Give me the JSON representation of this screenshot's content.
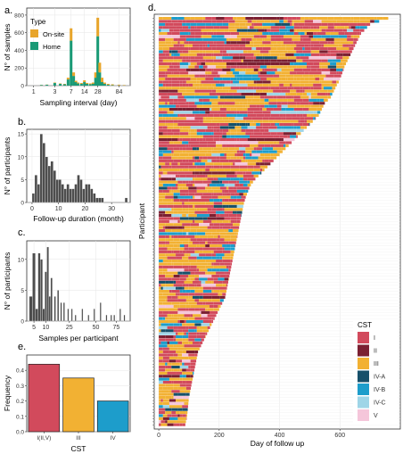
{
  "colors": {
    "onsite": "#E8A52B",
    "home": "#1A9A76",
    "gray_bar": "#4D4D4D",
    "panel_border": "#333333",
    "grid": "#E6E6E6",
    "cst": {
      "I": "#D24A5C",
      "II": "#7B2032",
      "III": "#F2B133",
      "IV-A": "#17506A",
      "IV-B": "#1D9DCB",
      "IV-C": "#9FD5E7",
      "V": "#F5C6DA"
    }
  },
  "chart_data": [
    {
      "panel": "a.",
      "type": "bar",
      "stacked": true,
      "xlabel": "Sampling interval (day)",
      "ylabel": "N° of samples",
      "x_scale": "log",
      "xticks": [
        "1",
        "3",
        "7",
        "14",
        "28",
        "84"
      ],
      "xtick_values": [
        1,
        3,
        7,
        14,
        28,
        84
      ],
      "xlim": [
        0.7,
        150
      ],
      "ylim": [
        0,
        880
      ],
      "yticks": [
        0,
        200,
        400,
        600,
        800
      ],
      "legend_title": "Type",
      "legend_position": "top-left",
      "series": [
        {
          "name": "On-site",
          "color_key": "onsite"
        },
        {
          "name": "Home",
          "color_key": "home"
        }
      ],
      "bins": [
        {
          "x": 1.5,
          "home": 8,
          "onsite": 2
        },
        {
          "x": 2,
          "home": 10,
          "onsite": 2
        },
        {
          "x": 3,
          "home": 30,
          "onsite": 5
        },
        {
          "x": 4,
          "home": 20,
          "onsite": 5
        },
        {
          "x": 5,
          "home": 15,
          "onsite": 5
        },
        {
          "x": 6,
          "home": 70,
          "onsite": 20
        },
        {
          "x": 7,
          "home": 510,
          "onsite": 140
        },
        {
          "x": 8,
          "home": 110,
          "onsite": 40
        },
        {
          "x": 9,
          "home": 40,
          "onsite": 15
        },
        {
          "x": 10,
          "home": 25,
          "onsite": 10
        },
        {
          "x": 12,
          "home": 20,
          "onsite": 10
        },
        {
          "x": 14,
          "home": 40,
          "onsite": 20
        },
        {
          "x": 16,
          "home": 20,
          "onsite": 10
        },
        {
          "x": 19,
          "home": 15,
          "onsite": 10
        },
        {
          "x": 22,
          "home": 20,
          "onsite": 15
        },
        {
          "x": 25,
          "home": 90,
          "onsite": 60
        },
        {
          "x": 28,
          "home": 560,
          "onsite": 210
        },
        {
          "x": 31,
          "home": 150,
          "onsite": 110
        },
        {
          "x": 35,
          "home": 40,
          "onsite": 50
        },
        {
          "x": 40,
          "home": 20,
          "onsite": 15
        },
        {
          "x": 48,
          "home": 10,
          "onsite": 10
        },
        {
          "x": 60,
          "home": 5,
          "onsite": 10
        },
        {
          "x": 84,
          "home": 3,
          "onsite": 8
        },
        {
          "x": 110,
          "home": 2,
          "onsite": 5
        }
      ]
    },
    {
      "panel": "b.",
      "type": "bar",
      "xlabel": "Follow-up duration (month)",
      "ylabel": "N° of participants",
      "xlim": [
        -2,
        37
      ],
      "ylim": [
        0,
        16
      ],
      "xticks": [
        "0",
        "10",
        "20",
        "30"
      ],
      "xtick_values": [
        0,
        10,
        20,
        30
      ],
      "yticks": [
        0,
        5,
        10,
        15
      ],
      "bin_width": 1,
      "bins": [
        {
          "x": 0,
          "count": 2
        },
        {
          "x": 1,
          "count": 6
        },
        {
          "x": 2,
          "count": 4
        },
        {
          "x": 3,
          "count": 15
        },
        {
          "x": 4,
          "count": 13
        },
        {
          "x": 5,
          "count": 10
        },
        {
          "x": 6,
          "count": 8
        },
        {
          "x": 7,
          "count": 9
        },
        {
          "x": 8,
          "count": 7
        },
        {
          "x": 9,
          "count": 5
        },
        {
          "x": 10,
          "count": 5
        },
        {
          "x": 11,
          "count": 4
        },
        {
          "x": 12,
          "count": 3
        },
        {
          "x": 13,
          "count": 4
        },
        {
          "x": 14,
          "count": 3
        },
        {
          "x": 15,
          "count": 3
        },
        {
          "x": 16,
          "count": 4
        },
        {
          "x": 17,
          "count": 6
        },
        {
          "x": 18,
          "count": 5
        },
        {
          "x": 19,
          "count": 3
        },
        {
          "x": 20,
          "count": 4
        },
        {
          "x": 21,
          "count": 4
        },
        {
          "x": 22,
          "count": 3
        },
        {
          "x": 23,
          "count": 2
        },
        {
          "x": 24,
          "count": 1
        },
        {
          "x": 25,
          "count": 1
        },
        {
          "x": 26,
          "count": 1
        },
        {
          "x": 35,
          "count": 1
        }
      ]
    },
    {
      "panel": "c.",
      "type": "bar",
      "xlabel": "Samples per participant",
      "ylabel": "N° of participants",
      "x_scale": "sqrt",
      "xlim": [
        2.8,
        95
      ],
      "ylim": [
        0,
        13
      ],
      "xticks": [
        "5",
        "10",
        "25",
        "50",
        "75"
      ],
      "xtick_values": [
        5,
        10,
        25,
        50,
        75
      ],
      "yticks": [
        0,
        5,
        10
      ],
      "bins": [
        {
          "x": 4,
          "count": 4
        },
        {
          "x": 5,
          "count": 11
        },
        {
          "x": 6,
          "count": 2
        },
        {
          "x": 7,
          "count": 11
        },
        {
          "x": 8,
          "count": 10
        },
        {
          "x": 9,
          "count": 2
        },
        {
          "x": 10,
          "count": 8
        },
        {
          "x": 11,
          "count": 12
        },
        {
          "x": 12,
          "count": 4
        },
        {
          "x": 13,
          "count": 7
        },
        {
          "x": 15,
          "count": 4
        },
        {
          "x": 17,
          "count": 5
        },
        {
          "x": 19,
          "count": 3
        },
        {
          "x": 21,
          "count": 3
        },
        {
          "x": 24,
          "count": 2
        },
        {
          "x": 27,
          "count": 2
        },
        {
          "x": 30,
          "count": 1
        },
        {
          "x": 36,
          "count": 2
        },
        {
          "x": 42,
          "count": 1
        },
        {
          "x": 48,
          "count": 2
        },
        {
          "x": 55,
          "count": 3
        },
        {
          "x": 62,
          "count": 1
        },
        {
          "x": 68,
          "count": 1
        },
        {
          "x": 72,
          "count": 1
        },
        {
          "x": 80,
          "count": 2
        },
        {
          "x": 86,
          "count": 1
        }
      ]
    },
    {
      "panel": "e.",
      "type": "bar",
      "xlabel": "CST",
      "ylabel": "Frequency",
      "ylim": [
        0,
        0.5
      ],
      "yticks": [
        0,
        0.1,
        0.2,
        0.3,
        0.4
      ],
      "ytick_labels": [
        "0.0",
        "0.1",
        "0.2",
        "0.3",
        "0.4"
      ],
      "categories": [
        "I(II,V)",
        "III",
        "IV"
      ],
      "values": [
        0.44,
        0.35,
        0.2
      ],
      "color_keys": [
        "I",
        "III",
        "IV-B"
      ]
    },
    {
      "panel": "d.",
      "type": "heatmap",
      "xlabel": "Day of follow up",
      "ylabel": "Participant",
      "xlim": [
        -15,
        800
      ],
      "xticks": [
        "0",
        "200",
        "400",
        "600"
      ],
      "xtick_values": [
        0,
        200,
        400,
        600
      ],
      "n_participants": 135,
      "legend_title": "CST",
      "legend_position": "bottom-right",
      "legend_items": [
        "I",
        "II",
        "III",
        "IV-A",
        "IV-B",
        "IV-C",
        "V"
      ],
      "category_weights": {
        "I": 0.42,
        "II": 0.05,
        "III": 0.35,
        "IV-A": 0.03,
        "IV-B": 0.09,
        "IV-C": 0.03,
        "V": 0.03
      },
      "follow_up_days": [
        760,
        730,
        700,
        690,
        680,
        670,
        665,
        660,
        655,
        650,
        645,
        640,
        635,
        630,
        625,
        620,
        615,
        612,
        608,
        604,
        600,
        596,
        590,
        585,
        580,
        575,
        570,
        560,
        550,
        545,
        540,
        535,
        530,
        520,
        510,
        500,
        490,
        480,
        470,
        460,
        450,
        440,
        430,
        420,
        410,
        400,
        390,
        380,
        370,
        360,
        350,
        340,
        330,
        320,
        312,
        305,
        300,
        296,
        292,
        288,
        285,
        282,
        280,
        278,
        276,
        274,
        272,
        270,
        268,
        266,
        264,
        262,
        260,
        258,
        256,
        254,
        252,
        250,
        248,
        246,
        244,
        242,
        240,
        238,
        236,
        234,
        232,
        230,
        228,
        226,
        224,
        222,
        220,
        215,
        210,
        205,
        200,
        195,
        190,
        185,
        180,
        175,
        170,
        165,
        160,
        155,
        150,
        145,
        140,
        135,
        130,
        128,
        126,
        124,
        122,
        120,
        118,
        116,
        114,
        112,
        110,
        108,
        106,
        104,
        102,
        100,
        99,
        98,
        97,
        96,
        95,
        94,
        92,
        90,
        88
      ]
    }
  ]
}
